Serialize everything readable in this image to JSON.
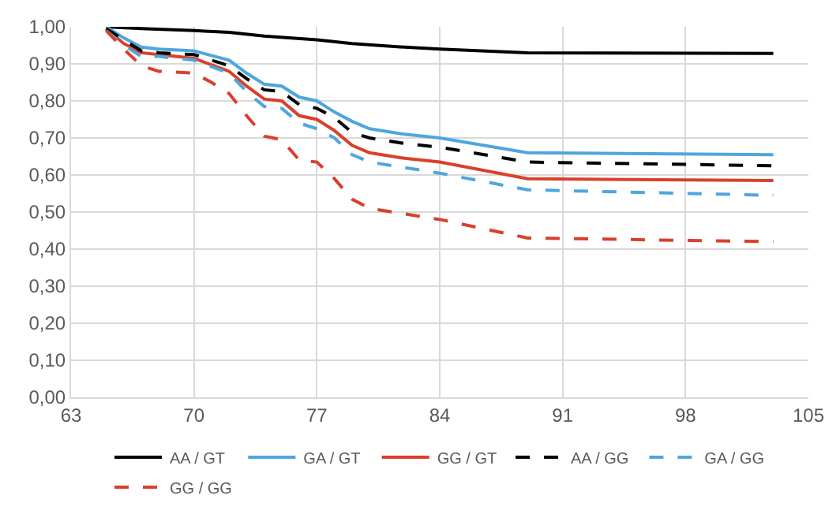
{
  "chart_data": {
    "type": "line",
    "xlim": [
      63,
      105
    ],
    "xticks": [
      63,
      70,
      77,
      84,
      91,
      98,
      105
    ],
    "ylim": [
      0,
      1
    ],
    "yticks": [
      {
        "value": 0,
        "label": "0,00"
      },
      {
        "value": 0.1,
        "label": "0,10"
      },
      {
        "value": 0.2,
        "label": "0,20"
      },
      {
        "value": 0.3,
        "label": "0,30"
      },
      {
        "value": 0.4,
        "label": "0,40"
      },
      {
        "value": 0.5,
        "label": "0,50"
      },
      {
        "value": 0.6,
        "label": "0,60"
      },
      {
        "value": 0.7,
        "label": "0,70"
      },
      {
        "value": 0.8,
        "label": "0,80"
      },
      {
        "value": 0.9,
        "label": "0,90"
      },
      {
        "value": 1,
        "label": "1,00"
      }
    ],
    "grid": true,
    "legend": "bottom",
    "marker": "none",
    "series": [
      {
        "name": "AA / GT",
        "color": "#000000",
        "line_style": "solid",
        "x": [
          65,
          67,
          70,
          72,
          74,
          77,
          79,
          82,
          84,
          89,
          103
        ],
        "values": [
          1.0,
          0.995,
          0.99,
          0.985,
          0.975,
          0.965,
          0.955,
          0.945,
          0.94,
          0.93,
          0.928
        ]
      },
      {
        "name": "GA / GT",
        "color": "#4ea6dc",
        "line_style": "solid",
        "x": [
          65,
          66,
          67,
          68,
          70,
          72,
          73,
          74,
          75,
          76,
          77,
          78,
          79,
          80,
          82,
          84,
          89,
          103
        ],
        "values": [
          1.0,
          0.97,
          0.945,
          0.94,
          0.935,
          0.91,
          0.875,
          0.845,
          0.84,
          0.81,
          0.8,
          0.77,
          0.745,
          0.725,
          0.71,
          0.7,
          0.66,
          0.655
        ]
      },
      {
        "name": "GG / GT",
        "color": "#d9402b",
        "line_style": "solid",
        "x": [
          65,
          66,
          67,
          68,
          70,
          72,
          73,
          74,
          75,
          76,
          77,
          78,
          79,
          80,
          82,
          84,
          89,
          103
        ],
        "values": [
          0.995,
          0.955,
          0.93,
          0.925,
          0.915,
          0.88,
          0.84,
          0.805,
          0.8,
          0.76,
          0.75,
          0.72,
          0.68,
          0.66,
          0.645,
          0.635,
          0.59,
          0.585
        ]
      },
      {
        "name": "AA / GG",
        "color": "#000000",
        "line_style": "dashed",
        "x": [
          65,
          66,
          67,
          68,
          70,
          72,
          73,
          74,
          75,
          76,
          77,
          78,
          79,
          80,
          82,
          84,
          89,
          103
        ],
        "values": [
          0.995,
          0.965,
          0.935,
          0.93,
          0.925,
          0.895,
          0.86,
          0.83,
          0.825,
          0.79,
          0.78,
          0.755,
          0.715,
          0.7,
          0.685,
          0.675,
          0.635,
          0.625
        ]
      },
      {
        "name": "GA / GG",
        "color": "#4ea6dc",
        "line_style": "dashed",
        "x": [
          65,
          66,
          67,
          68,
          70,
          72,
          73,
          74,
          75,
          76,
          77,
          78,
          79,
          80,
          82,
          84,
          89,
          103
        ],
        "values": [
          0.99,
          0.95,
          0.92,
          0.92,
          0.91,
          0.875,
          0.825,
          0.785,
          0.78,
          0.74,
          0.725,
          0.7,
          0.655,
          0.635,
          0.62,
          0.605,
          0.56,
          0.545
        ]
      },
      {
        "name": "GG / GG",
        "color": "#d9402b",
        "line_style": "dashed",
        "x": [
          65,
          66,
          67,
          68,
          70,
          71,
          72,
          73,
          74,
          75,
          76,
          77,
          78,
          79,
          80,
          82,
          84,
          89,
          103
        ],
        "values": [
          0.99,
          0.94,
          0.895,
          0.88,
          0.875,
          0.85,
          0.82,
          0.76,
          0.705,
          0.695,
          0.64,
          0.635,
          0.59,
          0.535,
          0.51,
          0.495,
          0.48,
          0.43,
          0.42
        ]
      }
    ]
  }
}
